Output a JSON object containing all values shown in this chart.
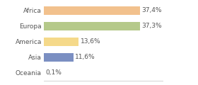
{
  "categories": [
    "Africa",
    "Europa",
    "America",
    "Asia",
    "Oceania"
  ],
  "values": [
    37.4,
    37.3,
    13.6,
    11.6,
    0.1
  ],
  "labels": [
    "37,4%",
    "37,3%",
    "13,6%",
    "11,6%",
    "0,1%"
  ],
  "bar_colors": [
    "#f2c18d",
    "#b5c98a",
    "#f5d98a",
    "#7b8fc2",
    "#cccccc"
  ],
  "background_color": "#ffffff",
  "xlim": [
    0,
    46
  ],
  "label_fontsize": 6.5,
  "tick_fontsize": 6.5,
  "bar_height": 0.55
}
